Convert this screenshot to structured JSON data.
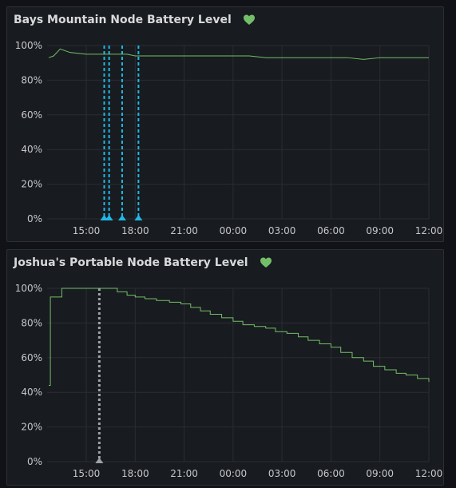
{
  "panels": [
    {
      "title": "Bays Mountain Node Battery Level",
      "status_icon": "heart-icon",
      "status_color": "#73bf69",
      "chart_data": {
        "type": "line",
        "y_ticks": [
          "0%",
          "20%",
          "40%",
          "60%",
          "80%",
          "100%"
        ],
        "x_ticks": [
          "15:00",
          "18:00",
          "21:00",
          "00:00",
          "03:00",
          "06:00",
          "09:00",
          "12:00"
        ],
        "ylim": [
          0,
          100
        ],
        "xlim_hours": [
          12.6,
          36.0
        ],
        "series": [
          {
            "color": "#73bf69",
            "x": [
              12.7,
              13.0,
              13.4,
              14.0,
              15.0,
              16.5,
              17.5,
              18.0,
              19.0,
              21.0,
              24.0,
              25.0,
              26.0,
              28.0,
              30.0,
              31.0,
              32.0,
              33.0,
              34.0,
              35.0,
              36.0
            ],
            "y": [
              93,
              94,
              98,
              96,
              95,
              95,
              95,
              94,
              94,
              94,
              94,
              94,
              93,
              93,
              93,
              93,
              92,
              93,
              93,
              93,
              93
            ]
          }
        ],
        "annotations": {
          "color": "#1fb8e6",
          "x": [
            16.1,
            16.4,
            17.2,
            18.2
          ]
        }
      }
    },
    {
      "title": "Joshua's Portable Node Battery Level",
      "status_icon": "heart-icon",
      "status_color": "#73bf69",
      "chart_data": {
        "type": "line",
        "y_ticks": [
          "0%",
          "20%",
          "40%",
          "60%",
          "80%",
          "100%"
        ],
        "x_ticks": [
          "15:00",
          "18:00",
          "21:00",
          "00:00",
          "03:00",
          "06:00",
          "09:00",
          "12:00"
        ],
        "ylim": [
          0,
          100
        ],
        "xlim_hours": [
          12.6,
          36.0
        ],
        "series": [
          {
            "color": "#73bf69",
            "x": [
              12.7,
              12.8,
              13.4,
              13.5,
              16.4,
              16.9,
              17.5,
              18.0,
              18.6,
              19.3,
              20.1,
              20.8,
              21.4,
              22.0,
              22.6,
              23.3,
              24.0,
              24.6,
              25.3,
              26.0,
              26.6,
              27.3,
              28.0,
              28.6,
              29.3,
              30.0,
              30.6,
              31.3,
              32.0,
              32.6,
              33.3,
              34.0,
              34.6,
              35.3,
              36.0
            ],
            "y": [
              44,
              95,
              95,
              100,
              100,
              98,
              96,
              95,
              94,
              93,
              92,
              91,
              89,
              87,
              85,
              83,
              81,
              79,
              78,
              77,
              75,
              74,
              72,
              70,
              68,
              66,
              63,
              60,
              58,
              55,
              53,
              51,
              50,
              48,
              46
            ]
          }
        ],
        "annotations": {
          "color": "#9fa3a8",
          "x": [
            15.8
          ]
        }
      }
    }
  ]
}
